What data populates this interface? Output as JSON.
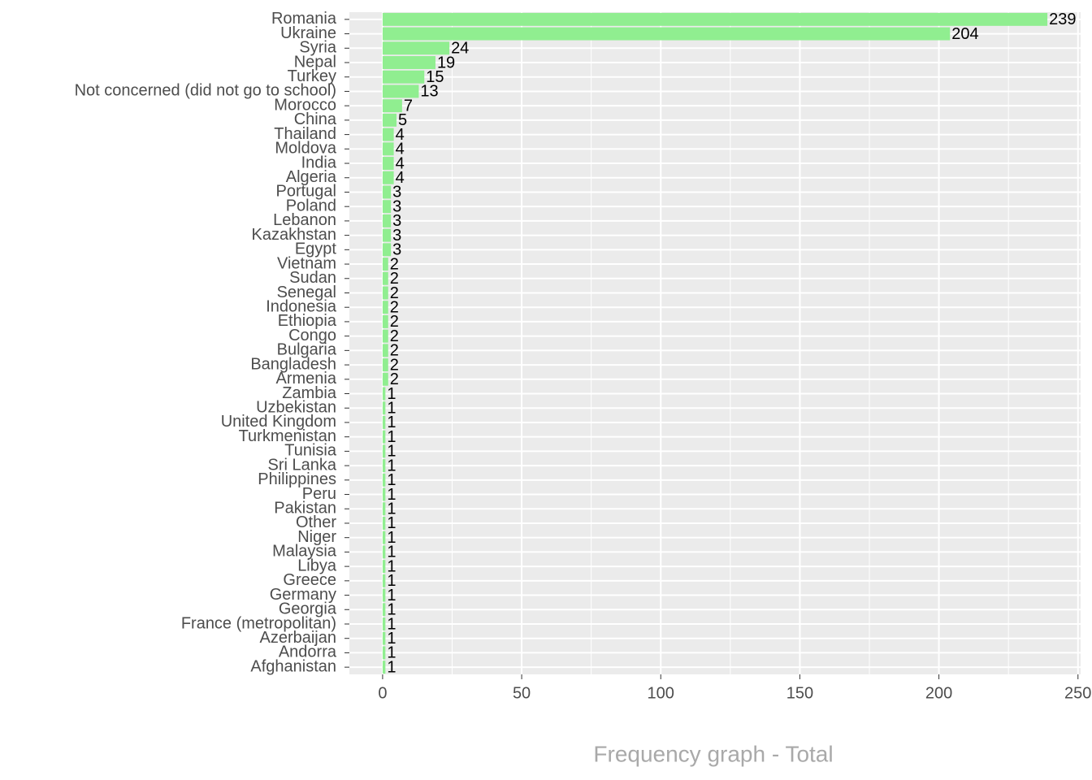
{
  "chart_data": {
    "type": "barh",
    "xlabel": "Frequency graph - Total",
    "categories": [
      "Romania",
      "Ukraine",
      "Syria",
      "Nepal",
      "Turkey",
      "Not concerned (did not go to school)",
      "Morocco",
      "China",
      "Thailand",
      "Moldova",
      "India",
      "Algeria",
      "Portugal",
      "Poland",
      "Lebanon",
      "Kazakhstan",
      "Egypt",
      "Vietnam",
      "Sudan",
      "Senegal",
      "Indonesia",
      "Ethiopia",
      "Congo",
      "Bulgaria",
      "Bangladesh",
      "Armenia",
      "Zambia",
      "Uzbekistan",
      "United Kingdom",
      "Turkmenistan",
      "Tunisia",
      "Sri Lanka",
      "Philippines",
      "Peru",
      "Pakistan",
      "Other",
      "Niger",
      "Malaysia",
      "Libya",
      "Greece",
      "Germany",
      "Georgia",
      "France (metropolitan)",
      "Azerbaijan",
      "Andorra",
      "Afghanistan"
    ],
    "values": [
      239,
      204,
      24,
      19,
      15,
      13,
      7,
      5,
      4,
      4,
      4,
      4,
      3,
      3,
      3,
      3,
      3,
      2,
      2,
      2,
      2,
      2,
      2,
      2,
      2,
      2,
      1,
      1,
      1,
      1,
      1,
      1,
      1,
      1,
      1,
      1,
      1,
      1,
      1,
      1,
      1,
      1,
      1,
      1,
      1,
      1
    ],
    "color": "#90ee90",
    "xlim": [
      -11.95,
      250.95
    ],
    "xticks": [
      0,
      50,
      100,
      150,
      200,
      250
    ],
    "grid": true
  }
}
